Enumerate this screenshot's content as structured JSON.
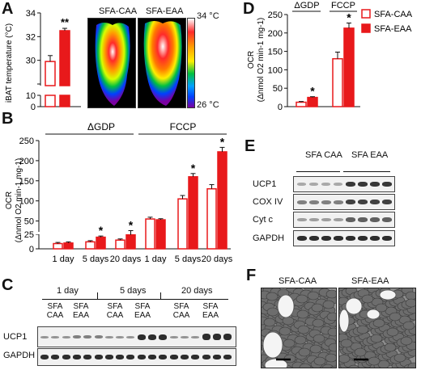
{
  "panels": {
    "A": "A",
    "B": "B",
    "C": "C",
    "D": "D",
    "E": "E",
    "F": "F"
  },
  "colors": {
    "caa": "#ffffff",
    "eaa": "#e8191b",
    "outline": "#e8191b"
  },
  "panelA": {
    "ylabel": "iBAT temperature (°C)",
    "label_caa": "SFA-CAA",
    "label_eaa": "SFA-EAA",
    "scale_top": "34 °C",
    "scale_bottom": "26 °C",
    "sig": "**"
  },
  "panelB": {
    "ylabel_line1": "OCR",
    "ylabel_line2": "(Δnmol O2 min-1 mg-1)",
    "group1": "ΔGDP",
    "group2": "FCCP",
    "x_labels": [
      "1 day",
      "5 days",
      "20 days",
      "1 day",
      "5 days",
      "20 days"
    ],
    "sig": "*"
  },
  "panelC": {
    "times": [
      "1 day",
      "5 days",
      "20 days"
    ],
    "groups": [
      "SFA CAA",
      "SFA EAA",
      "SFA CAA",
      "SFA EAA",
      "SFA CAA",
      "SFA EAA"
    ],
    "rows": [
      "UCP1",
      "GAPDH"
    ]
  },
  "panelD": {
    "ylabel_line1": "OCR",
    "ylabel_line2": "(Δnmol O2 min-1 mg-1)",
    "group1": "ΔGDP",
    "group2": "FCCP",
    "legend_caa": "SFA-CAA",
    "legend_eaa": "SFA-EAA",
    "sig": "*"
  },
  "panelE": {
    "groups": [
      "SFA CAA",
      "SFA EAA"
    ],
    "rows": [
      "UCP1",
      "COX IV",
      "Cyt c",
      "GAPDH"
    ]
  },
  "panelF": {
    "label_caa": "SFA-CAA",
    "label_eaa": "SFA-EAA"
  },
  "chart_data": [
    {
      "type": "bar",
      "panel": "A",
      "categories": [
        "SFA-CAA",
        "SFA-EAA"
      ],
      "values": [
        29.9,
        32.5
      ],
      "errors": [
        0.5,
        0.2
      ],
      "ylabel": "iBAT temperature (°C)",
      "y_ticks_shown": [
        0,
        10,
        28,
        30,
        32,
        34
      ],
      "axis_break": [
        10,
        28
      ],
      "ylim": [
        0,
        34
      ]
    },
    {
      "type": "bar",
      "panel": "B",
      "categories": [
        "1 day",
        "5 days",
        "20 days",
        "1 day",
        "5 days",
        "20 days"
      ],
      "groups": [
        "ΔGDP",
        "ΔGDP",
        "ΔGDP",
        "FCCP",
        "FCCP",
        "FCCP"
      ],
      "series": [
        {
          "name": "SFA-CAA",
          "values": [
            9,
            12,
            15,
            55,
            105,
            130
          ]
        },
        {
          "name": "SFA-EAA",
          "values": [
            10,
            20,
            24,
            53,
            160,
            222
          ]
        }
      ],
      "significant_eaa": [
        false,
        true,
        true,
        false,
        true,
        true
      ],
      "y_ticks": [
        0,
        25,
        50,
        100,
        150,
        200,
        250
      ],
      "ylim": [
        0,
        250
      ]
    },
    {
      "type": "bar",
      "panel": "D",
      "categories": [
        "ΔGDP",
        "FCCP"
      ],
      "series": [
        {
          "name": "SFA-CAA",
          "values": [
            12,
            130
          ]
        },
        {
          "name": "SFA-EAA",
          "values": [
            25,
            213
          ]
        }
      ],
      "errors_caa": [
        2,
        18
      ],
      "errors_eaa": [
        2,
        14
      ],
      "significant_eaa": [
        true,
        true
      ],
      "y_ticks": [
        0,
        50,
        100,
        150,
        200,
        250
      ],
      "ylim": [
        0,
        250
      ],
      "legend": "top-right"
    }
  ]
}
